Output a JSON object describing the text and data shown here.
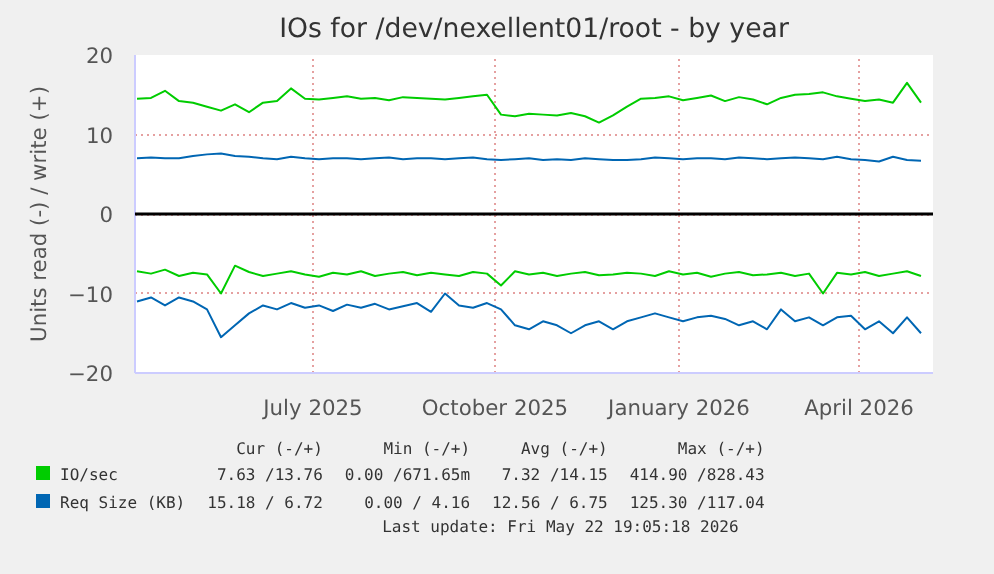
{
  "chart_data": {
    "type": "line",
    "title": "IOs for /dev/nexellent01/root - by year",
    "ylabel": "Units read (-) / write (+)",
    "xlim": [
      "2025-04-18",
      "2026-05-22"
    ],
    "xticks": [
      {
        "value": "2025-07-16",
        "label": "July 2025"
      },
      {
        "value": "2025-10-15",
        "label": "October 2025"
      },
      {
        "value": "2026-01-15",
        "label": "January 2026"
      },
      {
        "value": "2026-04-15",
        "label": "April 2026"
      }
    ],
    "ylim": [
      -20,
      20
    ],
    "yticks": [
      -20,
      -10,
      0,
      10,
      20
    ],
    "grid": true,
    "legend": "bottom",
    "marker": "none",
    "line_style": "solid",
    "x": [
      "2025-04-19",
      "2025-04-26",
      "2025-05-03",
      "2025-05-10",
      "2025-05-17",
      "2025-05-24",
      "2025-05-31",
      "2025-06-07",
      "2025-06-14",
      "2025-06-21",
      "2025-06-28",
      "2025-07-05",
      "2025-07-12",
      "2025-07-19",
      "2025-07-26",
      "2025-08-02",
      "2025-08-09",
      "2025-08-16",
      "2025-08-23",
      "2025-08-30",
      "2025-09-06",
      "2025-09-13",
      "2025-09-20",
      "2025-09-27",
      "2025-10-04",
      "2025-10-11",
      "2025-10-18",
      "2025-10-25",
      "2025-11-01",
      "2025-11-08",
      "2025-11-15",
      "2025-11-22",
      "2025-11-29",
      "2025-12-06",
      "2025-12-13",
      "2025-12-20",
      "2025-12-27",
      "2026-01-03",
      "2026-01-10",
      "2026-01-17",
      "2026-01-24",
      "2026-01-31",
      "2026-02-07",
      "2026-02-14",
      "2026-02-21",
      "2026-02-28",
      "2026-03-07",
      "2026-03-14",
      "2026-03-21",
      "2026-03-28",
      "2026-04-04",
      "2026-04-11",
      "2026-04-18",
      "2026-04-25",
      "2026-05-02",
      "2026-05-09",
      "2026-05-16"
    ],
    "ref_lines": [
      {
        "axis": "y",
        "value": 0,
        "label": null,
        "color": "#000000"
      }
    ],
    "series": [
      {
        "name": "IO/sec",
        "color": "#00cc00",
        "values": [
          14.5,
          14.6,
          15.5,
          14.2,
          14.0,
          13.5,
          13.0,
          13.8,
          12.8,
          14.0,
          14.2,
          15.8,
          14.5,
          14.4,
          14.6,
          14.8,
          14.5,
          14.6,
          14.3,
          14.7,
          14.6,
          14.5,
          14.4,
          14.6,
          14.8,
          15.0,
          12.5,
          12.3,
          12.6,
          12.5,
          12.4,
          12.7,
          12.3,
          11.5,
          12.4,
          13.5,
          14.5,
          14.6,
          14.8,
          14.3,
          14.6,
          14.9,
          14.2,
          14.7,
          14.4,
          13.8,
          14.6,
          15.0,
          15.1,
          15.3,
          14.8,
          14.5,
          14.2,
          14.4,
          14.0,
          16.5,
          14.0
        ]
      },
      {
        "color": "#00cc00",
        "values": [
          -7.2,
          -7.5,
          -7.0,
          -7.8,
          -7.4,
          -7.6,
          -10.0,
          -6.5,
          -7.3,
          -7.8,
          -7.5,
          -7.2,
          -7.6,
          -7.9,
          -7.4,
          -7.6,
          -7.2,
          -7.8,
          -7.5,
          -7.3,
          -7.7,
          -7.4,
          -7.6,
          -7.8,
          -7.3,
          -7.5,
          -9.0,
          -7.2,
          -7.6,
          -7.4,
          -7.8,
          -7.5,
          -7.3,
          -7.7,
          -7.6,
          -7.4,
          -7.5,
          -7.8,
          -7.2,
          -7.6,
          -7.4,
          -7.9,
          -7.5,
          -7.3,
          -7.7,
          -7.6,
          -7.4,
          -7.8,
          -7.5,
          -10.0,
          -7.4,
          -7.6,
          -7.3,
          -7.8,
          -7.5,
          -7.2,
          -7.8
        ]
      },
      {
        "name": "Req Size (KB)",
        "color": "#0066b3",
        "values": [
          7.0,
          7.1,
          7.0,
          7.0,
          7.3,
          7.5,
          7.6,
          7.3,
          7.2,
          7.0,
          6.9,
          7.2,
          7.0,
          6.9,
          7.0,
          7.0,
          6.9,
          7.0,
          7.1,
          6.9,
          7.0,
          7.0,
          6.9,
          7.0,
          7.1,
          6.9,
          6.8,
          6.9,
          7.0,
          6.8,
          6.9,
          6.8,
          7.0,
          6.9,
          6.8,
          6.8,
          6.9,
          7.1,
          7.0,
          6.9,
          7.0,
          7.0,
          6.9,
          7.1,
          7.0,
          6.9,
          7.0,
          7.1,
          7.0,
          6.9,
          7.2,
          6.9,
          6.8,
          6.6,
          7.2,
          6.8,
          6.7
        ]
      },
      {
        "color": "#0066b3",
        "values": [
          -11.0,
          -10.5,
          -11.5,
          -10.5,
          -11.0,
          -12.0,
          -15.5,
          -14.0,
          -12.5,
          -11.5,
          -12.0,
          -11.2,
          -11.8,
          -11.5,
          -12.2,
          -11.4,
          -11.8,
          -11.3,
          -12.0,
          -11.6,
          -11.2,
          -12.3,
          -10.0,
          -11.5,
          -11.8,
          -11.2,
          -12.0,
          -14.0,
          -14.5,
          -13.5,
          -14.0,
          -15.0,
          -14.0,
          -13.5,
          -14.5,
          -13.5,
          -13.0,
          -12.5,
          -13.0,
          -13.5,
          -13.0,
          -12.8,
          -13.2,
          -14.0,
          -13.5,
          -14.5,
          -12.0,
          -13.5,
          -13.0,
          -14.0,
          -13.0,
          -12.8,
          -14.5,
          -13.5,
          -15.0,
          -13.0,
          -15.0
        ]
      }
    ],
    "annotations": [
      "Cur (-/+)",
      "Min (-/+)",
      "Avg (-/+)",
      "Max (-/+)",
      "7.63 /13.76",
      "0.00 /671.65m",
      "7.32 /14.15",
      "414.90 /828.43",
      "15.18 / 6.72",
      "0.00 / 4.16",
      "12.56 / 6.75",
      "125.30 /117.04",
      "Last update: Fri May 22 19:05:18 2026"
    ]
  }
}
